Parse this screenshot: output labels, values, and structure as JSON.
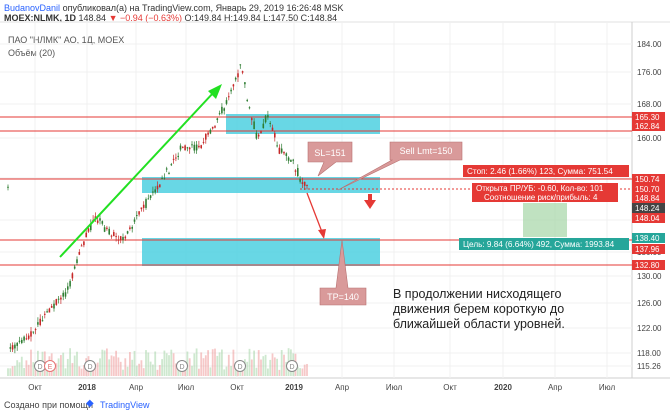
{
  "header": {
    "author": "BudanovDanil",
    "published": "опубликовал(а) на TradingView.com, Январь 29, 2019 16:26:48 MSK",
    "symbol": "MOEX:NLMK, 1D",
    "last": "148.84",
    "change": "▼ −0.94 (−0.63%)",
    "ohlc": "O:149.84 H:149.84 L:147.50 C:148.84"
  },
  "legend": {
    "title": "ПАО \"НЛМК\" АО, 1Д, MOEX",
    "volume": "Объём (20)"
  },
  "price_axis": {
    "ticks": [
      "184.00",
      "176.00",
      "168.00",
      "160.00",
      "152.00",
      "144.00",
      "136.00",
      "130.00",
      "126.00",
      "122.00",
      "118.00",
      "115.26"
    ],
    "tags": [
      {
        "label": "165.30",
        "color": "#e53935"
      },
      {
        "label": "162.84",
        "color": "#e53935"
      },
      {
        "label": "150.74",
        "color": "#e53935"
      },
      {
        "label": "150.70",
        "color": "#e53935"
      },
      {
        "label": "148.84",
        "color": "#e53935"
      },
      {
        "label": "148.24",
        "color": "#444444"
      },
      {
        "label": "148.04",
        "color": "#e53935"
      },
      {
        "label": "138.40",
        "color": "#26a69a"
      },
      {
        "label": "137.96",
        "color": "#e53935"
      },
      {
        "label": "132.80",
        "color": "#e53935"
      }
    ]
  },
  "time_axis": [
    "Окт",
    "2018",
    "Апр",
    "Июл",
    "Окт",
    "2019",
    "Апр",
    "Июл",
    "Окт",
    "2020",
    "Апр",
    "Июл"
  ],
  "callouts": {
    "sl": "SL=151",
    "sell": "Sell Lmt=150",
    "tp": "TP=140"
  },
  "position": {
    "stop": "Стоп: 2.46 (1.66%) 123, Сумма: 751.54",
    "open_pl": "Открыта ПР/УБ: -0.60, Кол-во: 101",
    "ratio": "Соотношение риск/прибыль: 4",
    "target": "Цель: 9.84 (6.64%) 492, Сумма: 1993.84"
  },
  "annotation": {
    "line1": "В продолжении нисходящего",
    "line2": "движения берем короткую до",
    "line3": "ближайшей области уровней."
  },
  "footer": {
    "created": "Создано при помощи",
    "brand": "TradingView"
  },
  "colors": {
    "zone": "#4dd0e1",
    "level": "#e53935",
    "target": "#a5d6a7",
    "callout": "#d99a9a",
    "arrow_green": "#22e022",
    "candle_up": "#2e7d32",
    "candle_down": "#c62828"
  }
}
